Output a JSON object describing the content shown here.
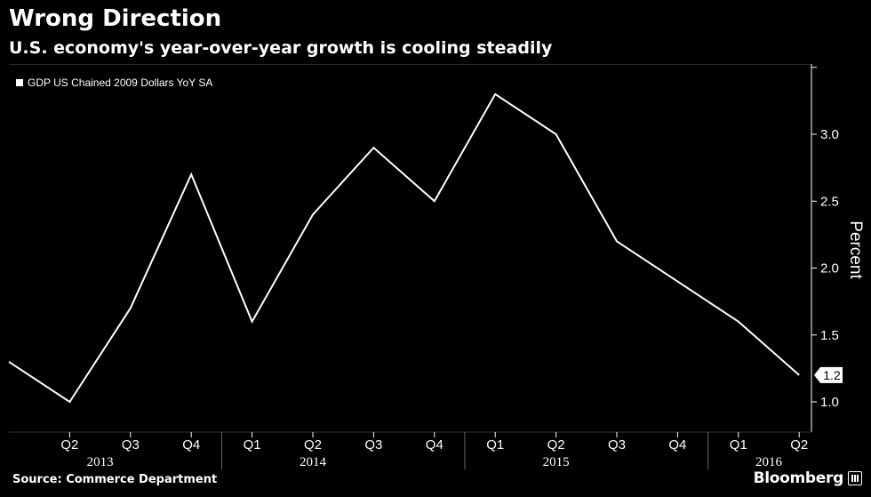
{
  "header": {
    "title": "Wrong Direction",
    "subtitle": "U.S. economy's year-over-year growth is cooling steadily"
  },
  "footer": {
    "source": "Source: Commerce Department",
    "brand": "Bloomberg"
  },
  "chart_data": {
    "type": "line",
    "title": "Wrong Direction",
    "subtitle": "U.S. economy's year-over-year growth is cooling steadily",
    "ylabel": "Percent",
    "xlabel": "",
    "ylim": [
      0.8,
      3.5
    ],
    "yticks": [
      1.0,
      1.5,
      2.0,
      2.5,
      3.0
    ],
    "ytick_labels": [
      "1.0",
      "1.5",
      "2.0",
      "2.5",
      "3.0"
    ],
    "y_axis_side": "right",
    "grid": false,
    "legend": "top-left",
    "x": [
      "2013 Q1",
      "2013 Q2",
      "2013 Q3",
      "2013 Q4",
      "2014 Q1",
      "2014 Q2",
      "2014 Q3",
      "2014 Q4",
      "2015 Q1",
      "2015 Q2",
      "2015 Q3",
      "2015 Q4",
      "2016 Q1",
      "2016 Q2"
    ],
    "quarter_labels": [
      "",
      "Q2",
      "Q3",
      "Q4",
      "Q1",
      "Q2",
      "Q3",
      "Q4",
      "Q1",
      "Q2",
      "Q3",
      "Q4",
      "Q1",
      "Q2"
    ],
    "year_labels": [
      {
        "label": "2013",
        "quarter_index": 1.5
      },
      {
        "label": "2014",
        "quarter_index": 5
      },
      {
        "label": "2015",
        "quarter_index": 9
      },
      {
        "label": "2016",
        "quarter_index": 12.5
      }
    ],
    "year_boundaries": [
      3.5,
      7.5,
      11.5
    ],
    "series": [
      {
        "name": "GDP US Chained 2009 Dollars YoY SA",
        "color": "#ffffff",
        "values": [
          1.3,
          1.0,
          1.7,
          2.7,
          1.6,
          2.4,
          2.9,
          2.5,
          3.3,
          3.0,
          2.2,
          1.9,
          1.6,
          1.2
        ]
      }
    ],
    "last_value_label": "1.2"
  },
  "colors": {
    "background": "#000000",
    "text": "#ffffff",
    "line": "#ffffff",
    "axis": "#ffffff",
    "gridline": "#444444"
  }
}
